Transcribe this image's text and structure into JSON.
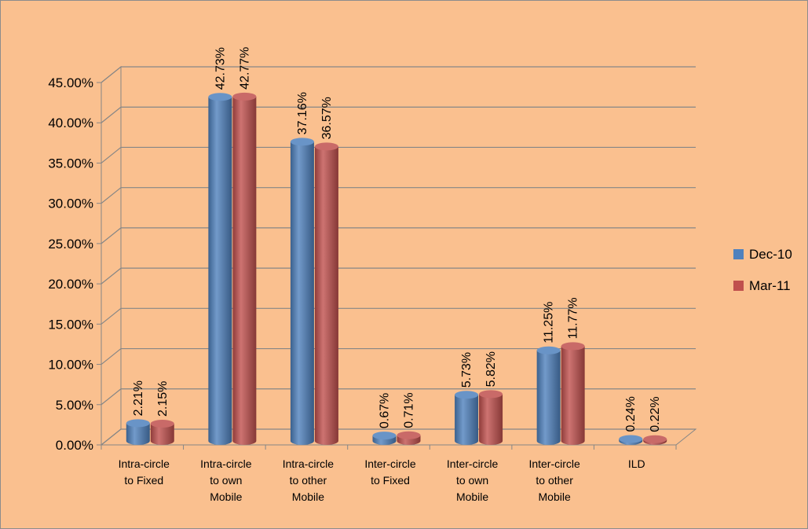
{
  "chart_data": {
    "type": "bar",
    "style": "3d-cylinder",
    "categories": [
      [
        "Intra-circle",
        "to Fixed"
      ],
      [
        "Intra-circle",
        "to own",
        "Mobile"
      ],
      [
        "Intra-circle",
        "to other",
        "Mobile"
      ],
      [
        "Inter-circle",
        "to Fixed"
      ],
      [
        "Inter-circle",
        "to own",
        "Mobile"
      ],
      [
        "Inter-circle",
        "to other",
        "Mobile"
      ],
      [
        "ILD"
      ]
    ],
    "series": [
      {
        "name": "Dec-10",
        "color": "#4f81bd",
        "values": [
          2.21,
          42.73,
          37.16,
          0.67,
          5.73,
          11.25,
          0.24
        ],
        "labels": [
          "2.21%",
          "42.73%",
          "37.16%",
          "0.67%",
          "5.73%",
          "11.25%",
          "0.24%"
        ]
      },
      {
        "name": "Mar-11",
        "color": "#c0504d",
        "values": [
          2.15,
          42.77,
          36.57,
          0.71,
          5.82,
          11.77,
          0.22
        ],
        "labels": [
          "2.15%",
          "42.77%",
          "36.57%",
          "0.71%",
          "5.82%",
          "11.77%",
          "0.22%"
        ]
      }
    ],
    "y_ticks": [
      "0.00%",
      "5.00%",
      "10.00%",
      "15.00%",
      "20.00%",
      "25.00%",
      "30.00%",
      "35.00%",
      "40.00%",
      "45.00%"
    ],
    "ylim": [
      0,
      45
    ],
    "grid": true,
    "legend": "right",
    "background": "#fac08f",
    "title": "",
    "xlabel": "",
    "ylabel": ""
  }
}
